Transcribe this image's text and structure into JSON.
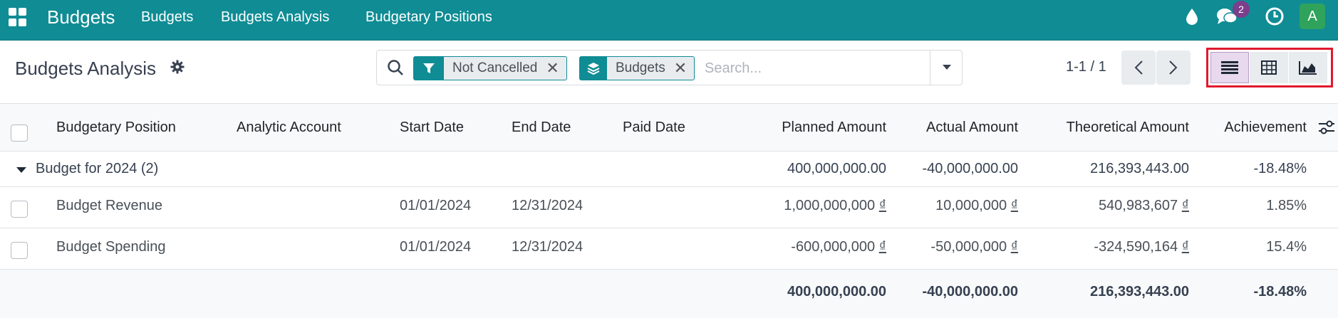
{
  "navbar": {
    "brand": "Budgets",
    "menu": [
      "Budgets",
      "Budgets Analysis",
      "Budgetary Positions"
    ],
    "message_count": "2",
    "avatar_letter": "A",
    "icons": [
      "apps-icon",
      "drop-icon",
      "chat-icon",
      "clock-icon"
    ],
    "color": "#0f8c94"
  },
  "control": {
    "title": "Budgets Analysis",
    "search": {
      "facets": [
        {
          "icon": "filter-icon",
          "label": "Not Cancelled"
        },
        {
          "icon": "layers-icon",
          "label": "Budgets"
        }
      ],
      "placeholder": "Search..."
    },
    "pager": "1-1 / 1",
    "views": [
      {
        "icon": "list-icon",
        "active": true
      },
      {
        "icon": "pivot-icon",
        "active": false
      },
      {
        "icon": "graph-icon",
        "active": false
      }
    ]
  },
  "table": {
    "columns": [
      "Budgetary Position",
      "Analytic Account",
      "Start Date",
      "End Date",
      "Paid Date",
      "Planned Amount",
      "Actual Amount",
      "Theoretical Amount",
      "Achievement"
    ],
    "group": {
      "label": "Budget for 2024 (2)",
      "planned": "400,000,000.00",
      "actual": "-40,000,000.00",
      "theoretical": "216,393,443.00",
      "achievement": "-18.48%"
    },
    "rows": [
      {
        "position": "Budget Revenue",
        "analytic": "",
        "start": "01/01/2024",
        "end": "12/31/2024",
        "paid": "",
        "planned": "1,000,000,000",
        "actual": "10,000,000",
        "theoretical": "540,983,607",
        "achievement": "1.85%"
      },
      {
        "position": "Budget Spending",
        "analytic": "",
        "start": "01/01/2024",
        "end": "12/31/2024",
        "paid": "",
        "planned": "-600,000,000",
        "actual": "-50,000,000",
        "theoretical": "-324,590,164",
        "achievement": "15.4%"
      }
    ],
    "currency": "₫",
    "totals": {
      "planned": "400,000,000.00",
      "actual": "-40,000,000.00",
      "theoretical": "216,393,443.00",
      "achievement": "-18.48%"
    }
  }
}
